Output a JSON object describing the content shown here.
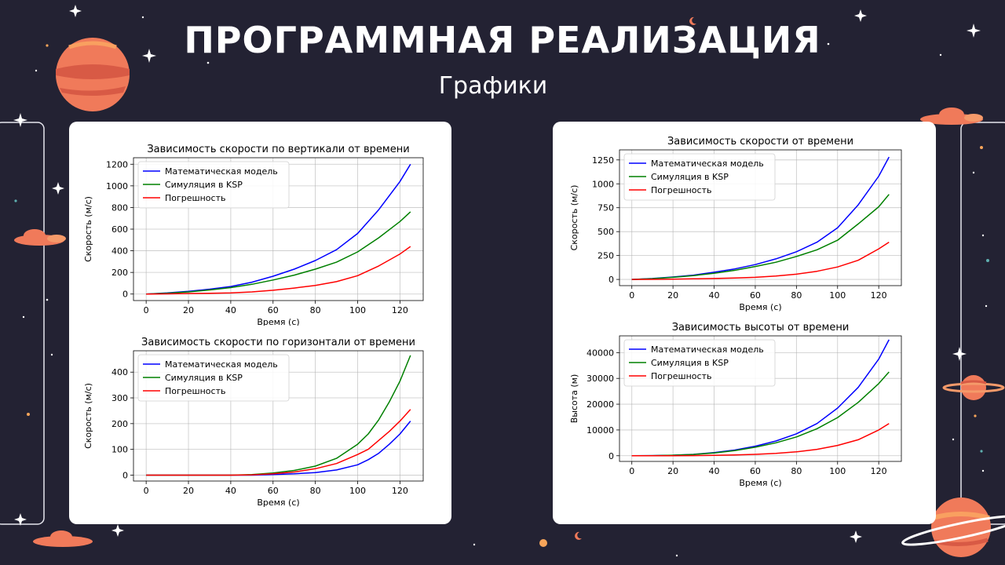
{
  "slide": {
    "title": "ПРОГРАММНАЯ РЕАЛИЗАЦИЯ",
    "subtitle": "Графики"
  },
  "colors": {
    "background": "#232233",
    "model": "#0000ff",
    "ksp": "#008000",
    "error": "#ff0000",
    "planet": "#f07a5a"
  },
  "icons": [
    "planet-icon",
    "ringed-planet-icon",
    "cloud-icon",
    "star-icon",
    "moon-icon"
  ],
  "chart_data": [
    {
      "type": "line",
      "title": "Зависимость скорости по вертикали от времени",
      "xlabel": "Время (с)",
      "ylabel": "Скорость (м/с)",
      "xlim": [
        -6,
        131
      ],
      "ylim": [
        -60,
        1260
      ],
      "xticks": [
        0,
        20,
        40,
        60,
        80,
        100,
        120
      ],
      "yticks": [
        0,
        200,
        400,
        600,
        800,
        1000,
        1200
      ],
      "grid": true,
      "legend": "top-left",
      "x": [
        0,
        10,
        20,
        30,
        40,
        50,
        60,
        70,
        80,
        90,
        100,
        110,
        120,
        125
      ],
      "series": [
        {
          "name": "Математическая модель",
          "color": "#0000ff",
          "values": [
            0,
            10,
            25,
            45,
            70,
            110,
            165,
            230,
            310,
            410,
            560,
            780,
            1040,
            1200
          ]
        },
        {
          "name": "Симуляция в KSP",
          "color": "#008000",
          "values": [
            0,
            8,
            20,
            38,
            60,
            90,
            130,
            175,
            230,
            295,
            390,
            520,
            670,
            760
          ]
        },
        {
          "name": "Погрешность",
          "color": "#ff0000",
          "values": [
            0,
            2,
            5,
            7,
            10,
            20,
            35,
            55,
            80,
            115,
            170,
            260,
            370,
            440
          ]
        }
      ]
    },
    {
      "type": "line",
      "title": "Зависимость скорости по горизонтали от времени",
      "xlabel": "Время (с)",
      "ylabel": "Скорость (м/с)",
      "xlim": [
        -6,
        131
      ],
      "ylim": [
        -23,
        483
      ],
      "xticks": [
        0,
        20,
        40,
        60,
        80,
        100,
        120
      ],
      "yticks": [
        0,
        100,
        200,
        300,
        400
      ],
      "grid": true,
      "legend": "top-left",
      "x": [
        0,
        20,
        40,
        50,
        60,
        70,
        80,
        90,
        100,
        105,
        110,
        115,
        120,
        125
      ],
      "series": [
        {
          "name": "Математическая модель",
          "color": "#0000ff",
          "values": [
            0,
            0,
            0,
            0,
            2,
            5,
            10,
            20,
            40,
            60,
            85,
            120,
            160,
            210
          ]
        },
        {
          "name": "Симуляция в KSP",
          "color": "#008000",
          "values": [
            0,
            0,
            0,
            2,
            8,
            18,
            35,
            65,
            120,
            160,
            215,
            285,
            365,
            465
          ]
        },
        {
          "name": "Погрешность",
          "color": "#ff0000",
          "values": [
            0,
            0,
            0,
            1,
            5,
            12,
            25,
            45,
            80,
            100,
            135,
            170,
            210,
            255
          ]
        }
      ]
    },
    {
      "type": "line",
      "title": "Зависимость скорости от времени",
      "xlabel": "Время (с)",
      "ylabel": "Скорость (м/с)",
      "xlim": [
        -6,
        131
      ],
      "ylim": [
        -65,
        1355
      ],
      "xticks": [
        0,
        20,
        40,
        60,
        80,
        100,
        120
      ],
      "yticks": [
        0,
        250,
        500,
        750,
        1000,
        1250
      ],
      "grid": true,
      "legend": "top-left",
      "x": [
        0,
        10,
        20,
        30,
        40,
        50,
        60,
        70,
        80,
        90,
        100,
        110,
        120,
        125
      ],
      "series": [
        {
          "name": "Математическая модель",
          "color": "#0000ff",
          "values": [
            0,
            10,
            25,
            45,
            75,
            110,
            155,
            215,
            290,
            390,
            540,
            780,
            1080,
            1280
          ]
        },
        {
          "name": "Симуляция в KSP",
          "color": "#008000",
          "values": [
            0,
            8,
            22,
            40,
            65,
            95,
            135,
            180,
            240,
            310,
            410,
            580,
            760,
            890
          ]
        },
        {
          "name": "Погрешность",
          "color": "#ff0000",
          "values": [
            0,
            1,
            3,
            6,
            10,
            15,
            22,
            35,
            55,
            85,
            130,
            200,
            320,
            390
          ]
        }
      ]
    },
    {
      "type": "line",
      "title": "Зависимость высоты от времени",
      "xlabel": "Время (с)",
      "ylabel": "Высота (м)",
      "xlim": [
        -6,
        131
      ],
      "ylim": [
        -2200,
        46500
      ],
      "xticks": [
        0,
        20,
        40,
        60,
        80,
        100,
        120
      ],
      "yticks": [
        0,
        10000,
        20000,
        30000,
        40000
      ],
      "grid": true,
      "legend": "top-left",
      "x": [
        0,
        10,
        20,
        30,
        40,
        50,
        60,
        70,
        80,
        90,
        100,
        110,
        120,
        125
      ],
      "series": [
        {
          "name": "Математическая модель",
          "color": "#0000ff",
          "values": [
            0,
            50,
            200,
            550,
            1200,
            2200,
            3700,
            5700,
            8500,
            12500,
            18500,
            26500,
            37500,
            45000
          ]
        },
        {
          "name": "Симуляция в KSP",
          "color": "#008000",
          "values": [
            0,
            50,
            200,
            500,
            1100,
            2000,
            3300,
            5000,
            7300,
            10500,
            14800,
            20700,
            28000,
            32500
          ]
        },
        {
          "name": "Погрешность",
          "color": "#ff0000",
          "values": [
            0,
            0,
            20,
            60,
            150,
            300,
            550,
            900,
            1500,
            2500,
            4000,
            6200,
            10000,
            12500
          ]
        }
      ]
    }
  ]
}
